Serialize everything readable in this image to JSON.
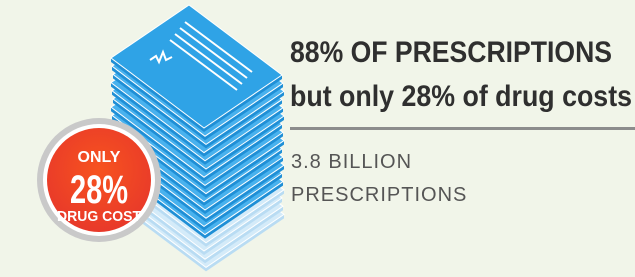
{
  "headline": {
    "line1": "88% OF PRESCRIPTIONS",
    "line2": "but only 28% of drug costs"
  },
  "stat": {
    "line1": "3.8 BILLION",
    "line2": "PRESCRIPTIONS"
  },
  "badge": {
    "top": "ONLY",
    "value": "28%",
    "bottom": "DRUG COST"
  }
}
